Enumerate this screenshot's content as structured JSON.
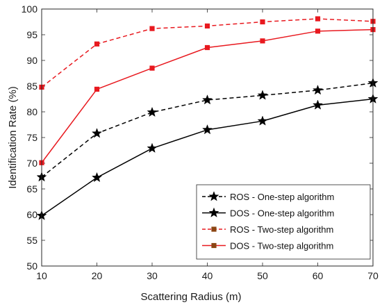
{
  "chart_data": {
    "type": "line",
    "title": "",
    "xlabel": "Scattering Radius (m)",
    "ylabel": "Identification Rate (%)",
    "x": [
      10,
      20,
      30,
      40,
      50,
      60,
      70
    ],
    "xlim": [
      10,
      70
    ],
    "ylim": [
      50,
      100
    ],
    "xticks": [
      10,
      20,
      30,
      40,
      50,
      60,
      70
    ],
    "yticks": [
      50,
      55,
      60,
      65,
      70,
      75,
      80,
      85,
      90,
      95,
      100
    ],
    "grid": false,
    "legend_position": "bottom-right",
    "series": [
      {
        "name": "ROS - One-step algorithm",
        "values": [
          67.3,
          75.8,
          79.9,
          82.3,
          83.2,
          84.2,
          85.6
        ],
        "color": "#000000",
        "line_style": "dashed",
        "marker": "star"
      },
      {
        "name": "DOS - One-step algorithm",
        "values": [
          59.8,
          67.2,
          72.9,
          76.5,
          78.2,
          81.3,
          82.5
        ],
        "color": "#000000",
        "line_style": "solid",
        "marker": "star"
      },
      {
        "name": "ROS - Two-step algorithm",
        "values": [
          84.8,
          93.2,
          96.2,
          96.7,
          97.5,
          98.1,
          97.6
        ],
        "color": "#e8191f",
        "line_style": "dashed",
        "marker": "square"
      },
      {
        "name": "DOS - Two-step algorithm",
        "values": [
          70.1,
          84.4,
          88.5,
          92.5,
          93.8,
          95.7,
          96.0
        ],
        "color": "#e8191f",
        "line_style": "solid",
        "marker": "square"
      }
    ],
    "legend_marker_color": "#8b4513"
  }
}
